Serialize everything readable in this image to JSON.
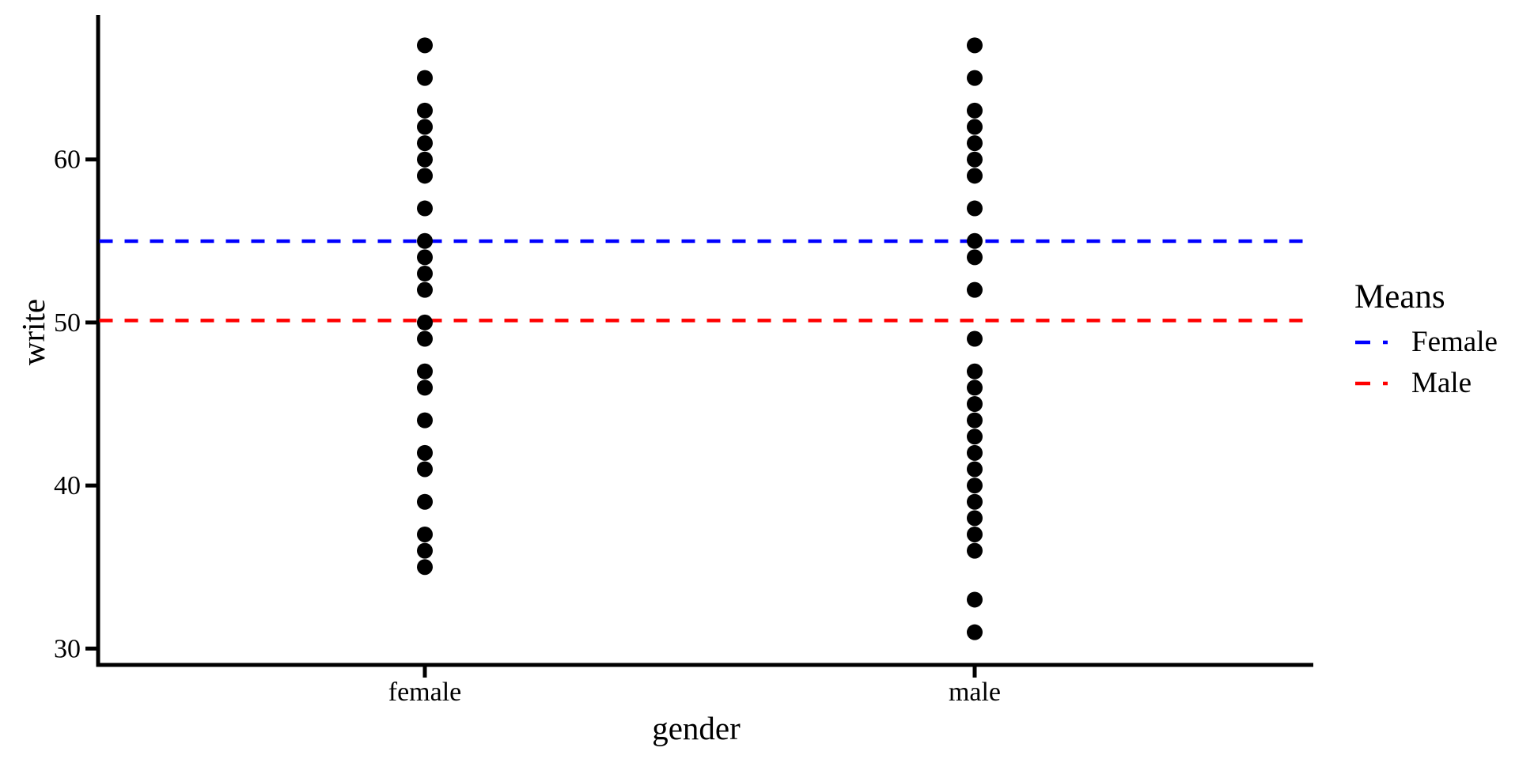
{
  "figure": {
    "background": "#FFFFFF",
    "axis_color": "#000000",
    "point_color": "#000000"
  },
  "chart_data": {
    "type": "scatter",
    "title": "",
    "xlabel": "gender",
    "ylabel": "write",
    "categories": [
      "female",
      "male"
    ],
    "y_ticks": [
      30,
      40,
      50,
      60
    ],
    "ylim": [
      28.5,
      69.2
    ],
    "grid": false,
    "series": [
      {
        "name": "female",
        "category": "female",
        "write_values": [
          35,
          36,
          37,
          39,
          41,
          42,
          44,
          46,
          47,
          49,
          50,
          52,
          53,
          54,
          55,
          57,
          59,
          60,
          61,
          62,
          63,
          65,
          67
        ]
      },
      {
        "name": "male",
        "category": "male",
        "write_values": [
          31,
          33,
          36,
          37,
          38,
          39,
          40,
          41,
          42,
          43,
          44,
          45,
          46,
          47,
          49,
          52,
          54,
          55,
          57,
          59,
          60,
          61,
          62,
          63,
          65,
          67
        ]
      }
    ],
    "mean_lines": [
      {
        "name": "Female",
        "value": 54.99,
        "color": "#0000FF",
        "style": "dashed"
      },
      {
        "name": "Male",
        "value": 50.12,
        "color": "#FF0000",
        "style": "dashed"
      }
    ],
    "legend": {
      "title": "Means",
      "position": "right",
      "entries": [
        {
          "label": "Female",
          "color": "#0000FF"
        },
        {
          "label": "Male",
          "color": "#FF0000"
        }
      ]
    }
  }
}
